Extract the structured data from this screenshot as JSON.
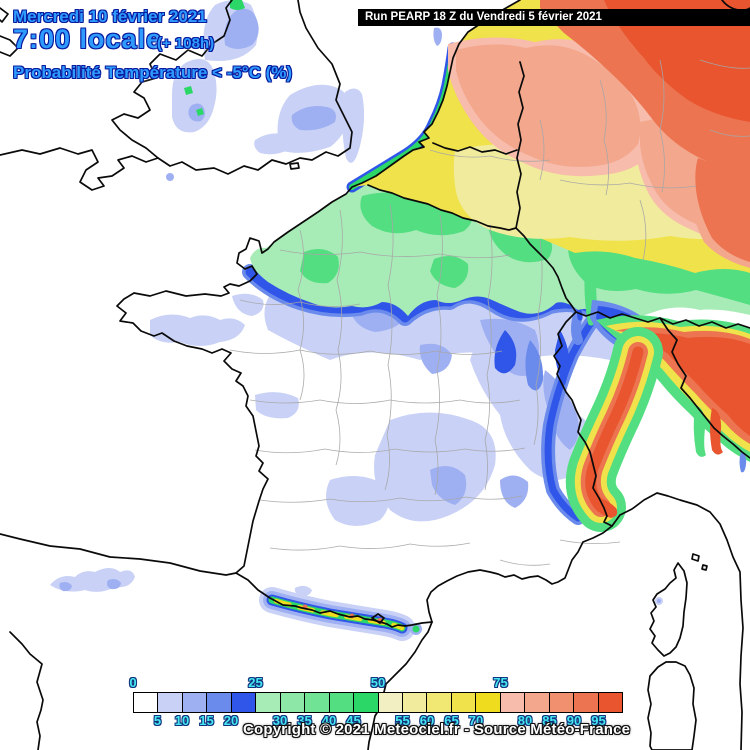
{
  "header": {
    "date_line": "Mercredi 10 février 2021",
    "time_line": "7:00 locale",
    "lead_time": "(+ 108h)",
    "variable_line": "Probabilité Température < -5°C (%)"
  },
  "run_box": {
    "text": "Run PEARP 18 Z du Vendredi 5 février 2021"
  },
  "footer": {
    "copyright": "Copyright © 2021 Meteociel.fr - Source Météo-France"
  },
  "legend": {
    "unit": "%",
    "thresholds": [
      0,
      5,
      10,
      15,
      20,
      25,
      30,
      35,
      40,
      45,
      50,
      55,
      60,
      65,
      70,
      75,
      80,
      85,
      90,
      95
    ],
    "colors": [
      "#FFFFFF",
      "#C9D2F6",
      "#9FB0F2",
      "#6B8BEC",
      "#2F55E9",
      "#A7ECB6",
      "#8DE8A7",
      "#71E394",
      "#52DE81",
      "#2BD767",
      "#F2EFC2",
      "#F1EB9D",
      "#F1E773",
      "#F0E24A",
      "#EFDC1F",
      "#F7BCAB",
      "#F3A78D",
      "#F0906F",
      "#EC7450",
      "#E8552F"
    ],
    "labels_above": [
      [
        "0",
        0
      ],
      [
        "25",
        5
      ],
      [
        "50",
        10
      ],
      [
        "75",
        15
      ]
    ],
    "labels_below": [
      [
        "5",
        1
      ],
      [
        "10",
        2
      ],
      [
        "15",
        3
      ],
      [
        "20",
        4
      ],
      [
        "30",
        6
      ],
      [
        "35",
        7
      ],
      [
        "40",
        8
      ],
      [
        "45",
        9
      ],
      [
        "55",
        11
      ],
      [
        "60",
        12
      ],
      [
        "65",
        13
      ],
      [
        "70",
        14
      ],
      [
        "80",
        16
      ],
      [
        "85",
        17
      ],
      [
        "90",
        18
      ],
      [
        "95",
        19
      ]
    ]
  },
  "colors": {
    "title_fill": "#2E9BFF",
    "title_outline": "#0A1B9E",
    "tick_fill": "#45E8F0",
    "tick_outline": "#12337E",
    "runbox_bg": "#000000",
    "runbox_text": "#FFFFFF",
    "sea": "#FFFFFF",
    "coastline": "#0A0A0A",
    "department_line": "#A7A7A7"
  }
}
